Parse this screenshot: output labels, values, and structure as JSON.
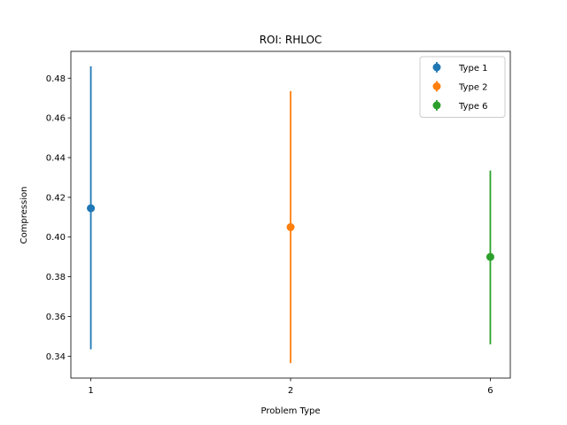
{
  "chart_data": {
    "type": "scatter",
    "title": "ROI: RHLOC",
    "xlabel": "Problem Type",
    "ylabel": "Compression",
    "categories": [
      "1",
      "2",
      "6"
    ],
    "ylim": [
      0.329,
      0.4935
    ],
    "yticks": [
      0.34,
      0.36,
      0.38,
      0.4,
      0.42,
      0.44,
      0.46,
      0.48
    ],
    "ytick_labels": [
      "0.34",
      "0.36",
      "0.38",
      "0.40",
      "0.42",
      "0.44",
      "0.46",
      "0.48"
    ],
    "grid": false,
    "legend_position": "top-right",
    "series": [
      {
        "name": "Type 1",
        "category": "1",
        "value": 0.4145,
        "lower": 0.3435,
        "upper": 0.486,
        "color": "#1f77b4"
      },
      {
        "name": "Type 2",
        "category": "2",
        "value": 0.405,
        "lower": 0.3365,
        "upper": 0.4735,
        "color": "#ff7f0e"
      },
      {
        "name": "Type 6",
        "category": "6",
        "value": 0.39,
        "lower": 0.346,
        "upper": 0.4335,
        "color": "#2ca02c"
      }
    ]
  }
}
